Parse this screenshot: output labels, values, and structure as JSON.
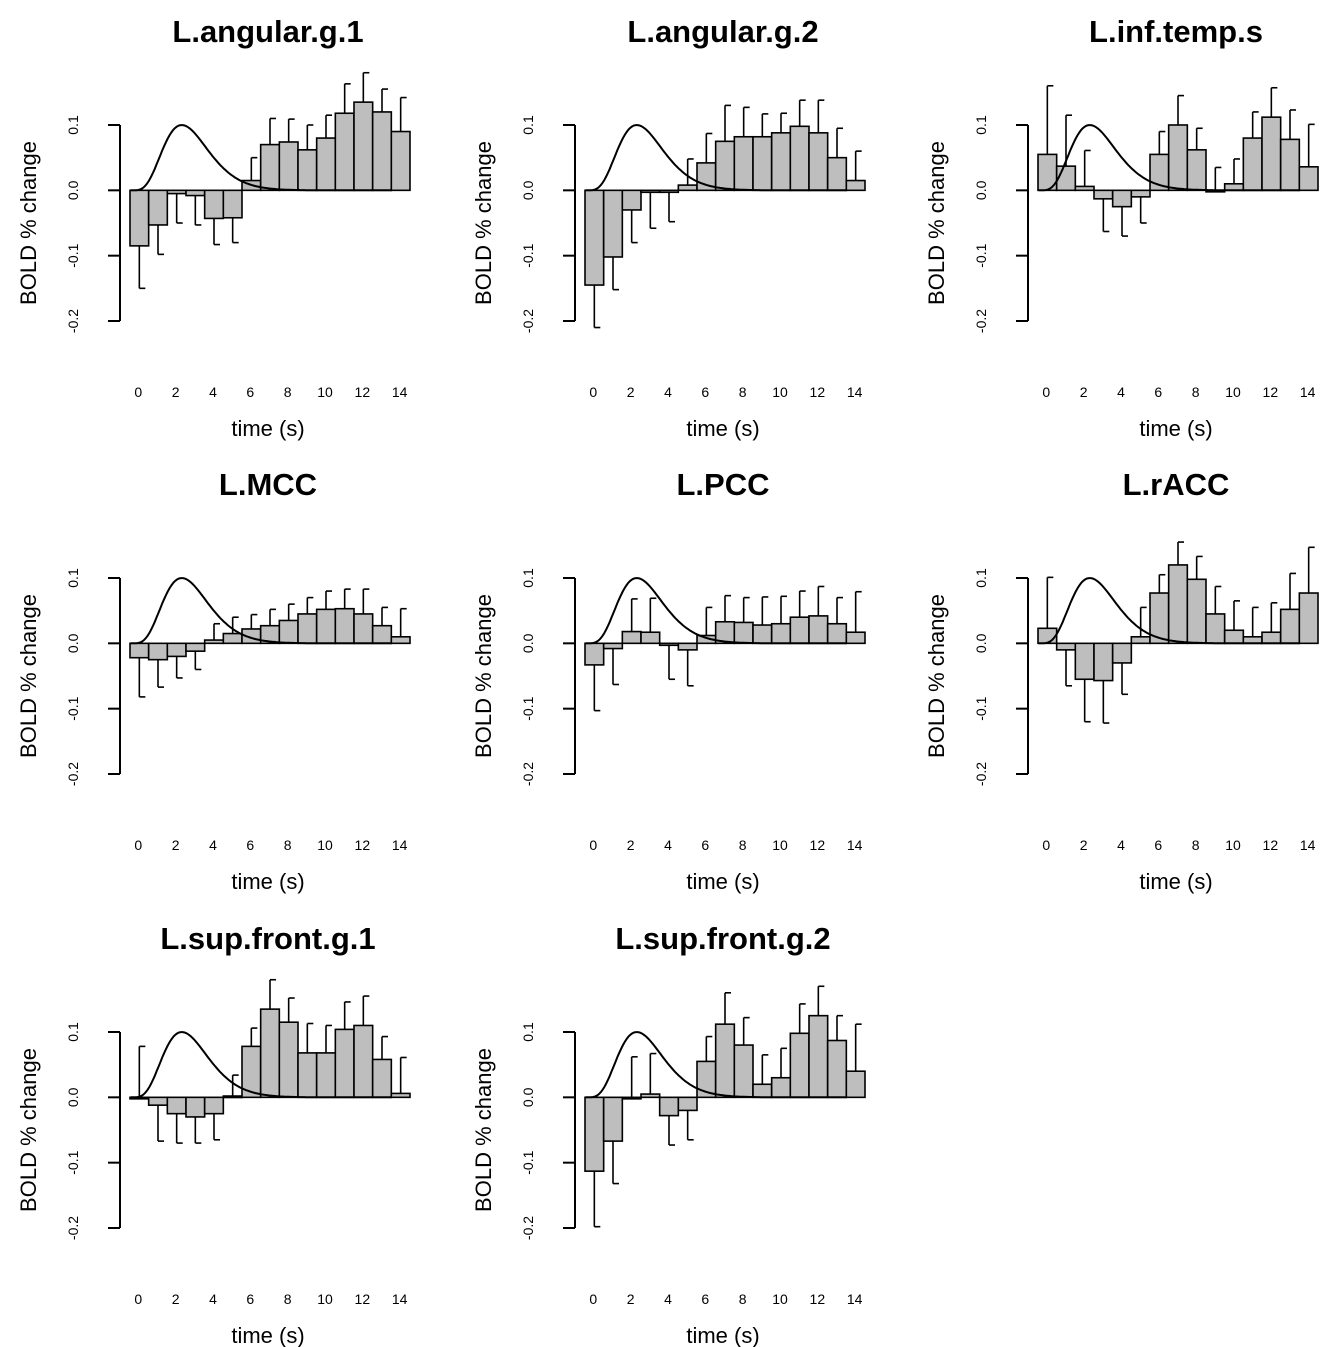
{
  "colors": {
    "bar_fill": "#bebebe",
    "stroke": "#000000",
    "background": "#ffffff"
  },
  "chart_data": [
    {
      "type": "bar",
      "title": "L.angular.g.1",
      "xlabel": "time (s)",
      "ylabel": "BOLD % change",
      "x": [
        0,
        1,
        2,
        3,
        4,
        5,
        6,
        7,
        8,
        9,
        10,
        11,
        12,
        13,
        14
      ],
      "xticks": [
        "0",
        "2",
        "4",
        "6",
        "8",
        "10",
        "12",
        "14"
      ],
      "yticks": [
        "-0.2",
        "-0.1",
        "0.0",
        "0.1"
      ],
      "ylim": [
        -0.2,
        0.1
      ],
      "values": [
        -0.085,
        -0.053,
        -0.005,
        -0.008,
        -0.043,
        -0.042,
        0.015,
        0.07,
        0.074,
        0.062,
        0.08,
        0.118,
        0.135,
        0.12,
        0.09
      ],
      "errors": [
        0.065,
        0.045,
        0.045,
        0.045,
        0.04,
        0.038,
        0.035,
        0.04,
        0.035,
        0.038,
        0.035,
        0.045,
        0.045,
        0.035,
        0.052
      ],
      "overlay": "hrf-curve",
      "grid": false
    },
    {
      "type": "bar",
      "title": "L.angular.g.2",
      "xlabel": "time (s)",
      "ylabel": "BOLD % change",
      "x": [
        0,
        1,
        2,
        3,
        4,
        5,
        6,
        7,
        8,
        9,
        10,
        11,
        12,
        13,
        14
      ],
      "xticks": [
        "0",
        "2",
        "4",
        "6",
        "8",
        "10",
        "12",
        "14"
      ],
      "yticks": [
        "-0.2",
        "-0.1",
        "0.0",
        "0.1"
      ],
      "ylim": [
        -0.2,
        0.1
      ],
      "values": [
        -0.145,
        -0.102,
        -0.03,
        -0.003,
        -0.003,
        0.008,
        0.042,
        0.075,
        0.082,
        0.082,
        0.088,
        0.098,
        0.088,
        0.05,
        0.015
      ],
      "errors": [
        0.065,
        0.05,
        0.05,
        0.055,
        0.045,
        0.04,
        0.045,
        0.055,
        0.045,
        0.035,
        0.03,
        0.04,
        0.05,
        0.045,
        0.045
      ],
      "overlay": "hrf-curve",
      "grid": false
    },
    {
      "type": "bar",
      "title": "L.inf.temp.s",
      "xlabel": "time (s)",
      "ylabel": "BOLD % change",
      "x": [
        0,
        1,
        2,
        3,
        4,
        5,
        6,
        7,
        8,
        9,
        10,
        11,
        12,
        13,
        14
      ],
      "xticks": [
        "0",
        "2",
        "4",
        "6",
        "8",
        "10",
        "12",
        "14"
      ],
      "yticks": [
        "-0.2",
        "-0.1",
        "0.0",
        "0.1"
      ],
      "ylim": [
        -0.2,
        0.1
      ],
      "values": [
        0.055,
        0.037,
        0.006,
        -0.013,
        -0.025,
        -0.01,
        0.055,
        0.1,
        0.062,
        0.0,
        0.01,
        0.08,
        0.112,
        0.078,
        0.036
      ],
      "errors": [
        0.105,
        0.078,
        0.055,
        0.05,
        0.045,
        0.04,
        0.035,
        0.045,
        0.033,
        0.035,
        0.038,
        0.04,
        0.045,
        0.045,
        0.065
      ],
      "overlay": "hrf-curve",
      "grid": false
    },
    {
      "type": "bar",
      "title": "L.MCC",
      "xlabel": "time (s)",
      "ylabel": "BOLD % change",
      "x": [
        0,
        1,
        2,
        3,
        4,
        5,
        6,
        7,
        8,
        9,
        10,
        11,
        12,
        13,
        14
      ],
      "xticks": [
        "0",
        "2",
        "4",
        "6",
        "8",
        "10",
        "12",
        "14"
      ],
      "yticks": [
        "-0.2",
        "-0.1",
        "0.0",
        "0.1"
      ],
      "ylim": [
        -0.2,
        0.1
      ],
      "values": [
        -0.022,
        -0.025,
        -0.02,
        -0.012,
        0.005,
        0.015,
        0.022,
        0.027,
        0.035,
        0.045,
        0.052,
        0.053,
        0.045,
        0.027,
        0.01
      ],
      "errors": [
        0.06,
        0.042,
        0.033,
        0.028,
        0.025,
        0.025,
        0.022,
        0.025,
        0.025,
        0.025,
        0.028,
        0.03,
        0.038,
        0.028,
        0.043
      ],
      "overlay": "hrf-curve",
      "grid": false
    },
    {
      "type": "bar",
      "title": "L.PCC",
      "xlabel": "time (s)",
      "ylabel": "BOLD % change",
      "x": [
        0,
        1,
        2,
        3,
        4,
        5,
        6,
        7,
        8,
        9,
        10,
        11,
        12,
        13,
        14
      ],
      "xticks": [
        "0",
        "2",
        "4",
        "6",
        "8",
        "10",
        "12",
        "14"
      ],
      "yticks": [
        "-0.2",
        "-0.1",
        "0.0",
        "0.1"
      ],
      "ylim": [
        -0.2,
        0.1
      ],
      "values": [
        -0.033,
        -0.008,
        0.018,
        0.017,
        -0.003,
        -0.01,
        0.012,
        0.033,
        0.032,
        0.028,
        0.03,
        0.04,
        0.042,
        0.03,
        0.017
      ],
      "errors": [
        0.07,
        0.055,
        0.05,
        0.052,
        0.052,
        0.055,
        0.043,
        0.04,
        0.038,
        0.043,
        0.042,
        0.04,
        0.045,
        0.04,
        0.062
      ],
      "overlay": "hrf-curve",
      "grid": false
    },
    {
      "type": "bar",
      "title": "L.rACC",
      "xlabel": "time (s)",
      "ylabel": "BOLD % change",
      "x": [
        0,
        1,
        2,
        3,
        4,
        5,
        6,
        7,
        8,
        9,
        10,
        11,
        12,
        13,
        14
      ],
      "xticks": [
        "0",
        "2",
        "4",
        "6",
        "8",
        "10",
        "12",
        "14"
      ],
      "yticks": [
        "-0.2",
        "-0.1",
        "0.0",
        "0.1"
      ],
      "ylim": [
        -0.2,
        0.1
      ],
      "values": [
        0.023,
        -0.01,
        -0.055,
        -0.057,
        -0.03,
        0.01,
        0.077,
        0.12,
        0.098,
        0.045,
        0.02,
        0.01,
        0.017,
        0.052,
        0.077
      ],
      "errors": [
        0.078,
        0.055,
        0.065,
        0.065,
        0.048,
        0.045,
        0.028,
        0.035,
        0.035,
        0.042,
        0.045,
        0.045,
        0.045,
        0.055,
        0.07
      ],
      "overlay": "hrf-curve",
      "grid": false
    },
    {
      "type": "bar",
      "title": "L.sup.front.g.1",
      "xlabel": "time (s)",
      "ylabel": "BOLD % change",
      "x": [
        0,
        1,
        2,
        3,
        4,
        5,
        6,
        7,
        8,
        9,
        10,
        11,
        12,
        13,
        14
      ],
      "xticks": [
        "0",
        "2",
        "4",
        "6",
        "8",
        "10",
        "12",
        "14"
      ],
      "yticks": [
        "-0.2",
        "-0.1",
        "0.0",
        "0.1"
      ],
      "ylim": [
        -0.2,
        0.1
      ],
      "values": [
        0.0,
        -0.012,
        -0.025,
        -0.03,
        -0.025,
        0.002,
        0.078,
        0.135,
        0.115,
        0.068,
        0.068,
        0.104,
        0.11,
        0.058,
        0.006
      ],
      "errors": [
        0.078,
        0.055,
        0.045,
        0.04,
        0.04,
        0.032,
        0.028,
        0.045,
        0.037,
        0.045,
        0.042,
        0.042,
        0.045,
        0.035,
        0.055
      ],
      "overlay": "hrf-curve",
      "grid": false
    },
    {
      "type": "bar",
      "title": "L.sup.front.g.2",
      "xlabel": "time (s)",
      "ylabel": "BOLD % change",
      "x": [
        0,
        1,
        2,
        3,
        4,
        5,
        6,
        7,
        8,
        9,
        10,
        11,
        12,
        13,
        14
      ],
      "xticks": [
        "0",
        "2",
        "4",
        "6",
        "8",
        "10",
        "12",
        "14"
      ],
      "yticks": [
        "-0.2",
        "-0.1",
        "0.0",
        "0.1"
      ],
      "ylim": [
        -0.2,
        0.1
      ],
      "values": [
        -0.113,
        -0.067,
        0.0,
        0.005,
        -0.028,
        -0.02,
        0.055,
        0.112,
        0.08,
        0.02,
        0.03,
        0.098,
        0.125,
        0.087,
        0.04
      ],
      "errors": [
        0.085,
        0.065,
        0.062,
        0.062,
        0.045,
        0.045,
        0.038,
        0.048,
        0.042,
        0.045,
        0.045,
        0.045,
        0.045,
        0.038,
        0.072
      ],
      "overlay": "hrf-curve",
      "grid": false
    }
  ]
}
